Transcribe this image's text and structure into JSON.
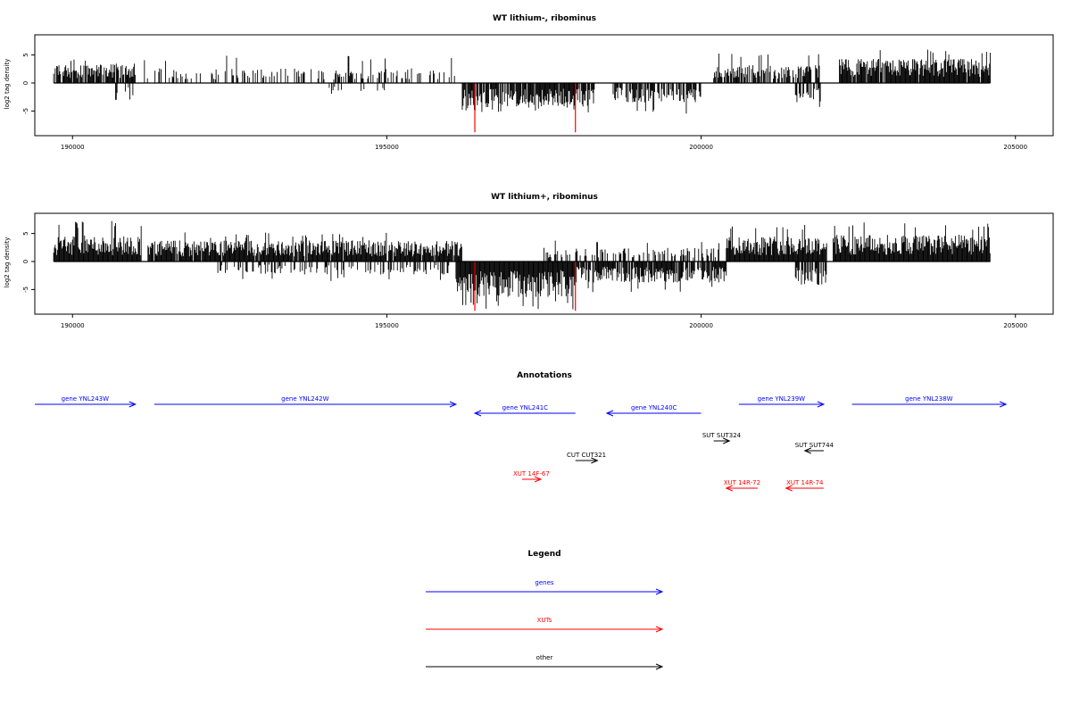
{
  "chart_data": [
    {
      "type": "bar",
      "title": "WT lithium-, ribominus",
      "ylabel": "log2 tag density",
      "xlim": [
        189400,
        205600
      ],
      "ylim": [
        -9.4,
        8.6
      ],
      "x_ticks": [
        190000,
        195000,
        200000,
        205000
      ],
      "y_ticks": [
        5,
        0,
        -5
      ],
      "x_tick_labels": [
        "190000",
        "195000",
        "200000",
        "205000"
      ],
      "y_tick_labels": [
        "5",
        "0",
        "-5"
      ],
      "baseline_range": [
        189700,
        204600
      ],
      "density_regions": [
        {
          "strand": "+",
          "start": 189700,
          "end": 191000,
          "avg": 2.4,
          "max": 4.6,
          "fill": 0.8
        },
        {
          "strand": "+",
          "start": 191000,
          "end": 196100,
          "avg": 1.8,
          "max": 4.9,
          "fill": 0.32
        },
        {
          "strand": "-",
          "start": 190600,
          "end": 191000,
          "avg": 2.3,
          "max": 3.0,
          "fill": 0.3
        },
        {
          "strand": "-",
          "start": 194000,
          "end": 195000,
          "avg": 1.4,
          "max": 3.2,
          "fill": 0.1
        },
        {
          "strand": "-",
          "start": 196200,
          "end": 198300,
          "avg": 2.9,
          "max": 5.3,
          "fill": 0.88
        },
        {
          "strand": "-",
          "start": 198600,
          "end": 200000,
          "avg": 2.4,
          "max": 5.6,
          "fill": 0.62
        },
        {
          "strand": "+",
          "start": 200200,
          "end": 201900,
          "avg": 2.2,
          "max": 5.6,
          "fill": 0.75
        },
        {
          "strand": "+",
          "start": 202200,
          "end": 204600,
          "avg": 3.0,
          "max": 6.0,
          "fill": 0.95
        },
        {
          "strand": "-",
          "start": 201500,
          "end": 201900,
          "avg": 2.4,
          "max": 4.3,
          "fill": 0.55
        }
      ],
      "highlight_bars": [
        {
          "x": 196400,
          "value": -8.8,
          "color": "#ff0000"
        },
        {
          "x": 198000,
          "value": -8.8,
          "color": "#ff0000"
        }
      ]
    },
    {
      "type": "bar",
      "title": "WT lithium+, ribominus",
      "ylabel": "log2 tag density",
      "xlim": [
        189400,
        205600
      ],
      "ylim": [
        -9.4,
        8.6
      ],
      "x_ticks": [
        190000,
        195000,
        200000,
        205000
      ],
      "y_ticks": [
        5,
        0,
        -5
      ],
      "x_tick_labels": [
        "190000",
        "195000",
        "200000",
        "205000"
      ],
      "y_tick_labels": [
        "5",
        "0",
        "-5"
      ],
      "baseline_range": [
        189700,
        204600
      ],
      "density_regions": [
        {
          "strand": "+",
          "start": 189700,
          "end": 191100,
          "avg": 3.2,
          "max": 7.3,
          "fill": 1.0
        },
        {
          "strand": "+",
          "start": 191200,
          "end": 196200,
          "avg": 2.6,
          "max": 5.2,
          "fill": 0.95
        },
        {
          "strand": "-",
          "start": 192300,
          "end": 196000,
          "avg": 1.6,
          "max": 3.5,
          "fill": 0.32
        },
        {
          "strand": "-",
          "start": 196100,
          "end": 198000,
          "avg": 4.4,
          "max": 8.6,
          "fill": 1.0
        },
        {
          "strand": "+",
          "start": 197500,
          "end": 200300,
          "avg": 1.7,
          "max": 3.9,
          "fill": 0.4
        },
        {
          "strand": "-",
          "start": 198000,
          "end": 200400,
          "avg": 2.6,
          "max": 5.5,
          "fill": 0.85
        },
        {
          "strand": "+",
          "start": 200400,
          "end": 202000,
          "avg": 3.2,
          "max": 6.8,
          "fill": 1.0
        },
        {
          "strand": "+",
          "start": 202100,
          "end": 204600,
          "avg": 3.3,
          "max": 7.0,
          "fill": 1.0
        },
        {
          "strand": "-",
          "start": 201500,
          "end": 202000,
          "avg": 2.9,
          "max": 4.8,
          "fill": 0.8
        }
      ],
      "highlight_bars": [
        {
          "x": 196400,
          "value": -8.8,
          "color": "#ff0000"
        },
        {
          "x": 198000,
          "value": -8.8,
          "color": "#ff0000"
        }
      ]
    }
  ],
  "annotations": {
    "title": "Annotations",
    "xlim": [
      189400,
      205600
    ],
    "features": [
      {
        "label": "gene YNL243W",
        "start": 189400,
        "end": 191000,
        "strand": "+",
        "row": 0,
        "color": "#0000ff"
      },
      {
        "label": "gene YNL242W",
        "start": 191300,
        "end": 196100,
        "strand": "+",
        "row": 0,
        "color": "#0000ff"
      },
      {
        "label": "gene YNL241C",
        "start": 196400,
        "end": 198000,
        "strand": "-",
        "row": 1,
        "color": "#0000ff"
      },
      {
        "label": "gene YNL240C",
        "start": 198500,
        "end": 200000,
        "strand": "-",
        "row": 1,
        "color": "#0000ff"
      },
      {
        "label": "gene YNL239W",
        "start": 200600,
        "end": 201950,
        "strand": "+",
        "row": 0,
        "color": "#0000ff"
      },
      {
        "label": "gene YNL238W",
        "start": 202400,
        "end": 204850,
        "strand": "+",
        "row": 0,
        "color": "#0000ff"
      },
      {
        "label": "SUT SUT324",
        "start": 200200,
        "end": 200450,
        "strand": "+",
        "row": 4,
        "color": "#000000"
      },
      {
        "label": "SUT SUT744",
        "start": 201650,
        "end": 201950,
        "strand": "-",
        "row": 5,
        "color": "#000000"
      },
      {
        "label": "CUT CUT321",
        "start": 198000,
        "end": 198350,
        "strand": "+",
        "row": 6,
        "color": "#000000"
      },
      {
        "label": "XUT 14F-67",
        "start": 197150,
        "end": 197450,
        "strand": "+",
        "row": 8,
        "color": "#ff0000"
      },
      {
        "label": "XUT 14R-72",
        "start": 200400,
        "end": 200900,
        "strand": "-",
        "row": 9,
        "color": "#ff0000"
      },
      {
        "label": "XUT 14R-74",
        "start": 201350,
        "end": 201950,
        "strand": "-",
        "row": 9,
        "color": "#ff0000"
      }
    ]
  },
  "legend": {
    "title": "Legend",
    "items": [
      {
        "label": "genes",
        "color": "#0000ff"
      },
      {
        "label": "XUTs",
        "color": "#ff0000"
      },
      {
        "label": "other",
        "color": "#000000"
      }
    ]
  }
}
